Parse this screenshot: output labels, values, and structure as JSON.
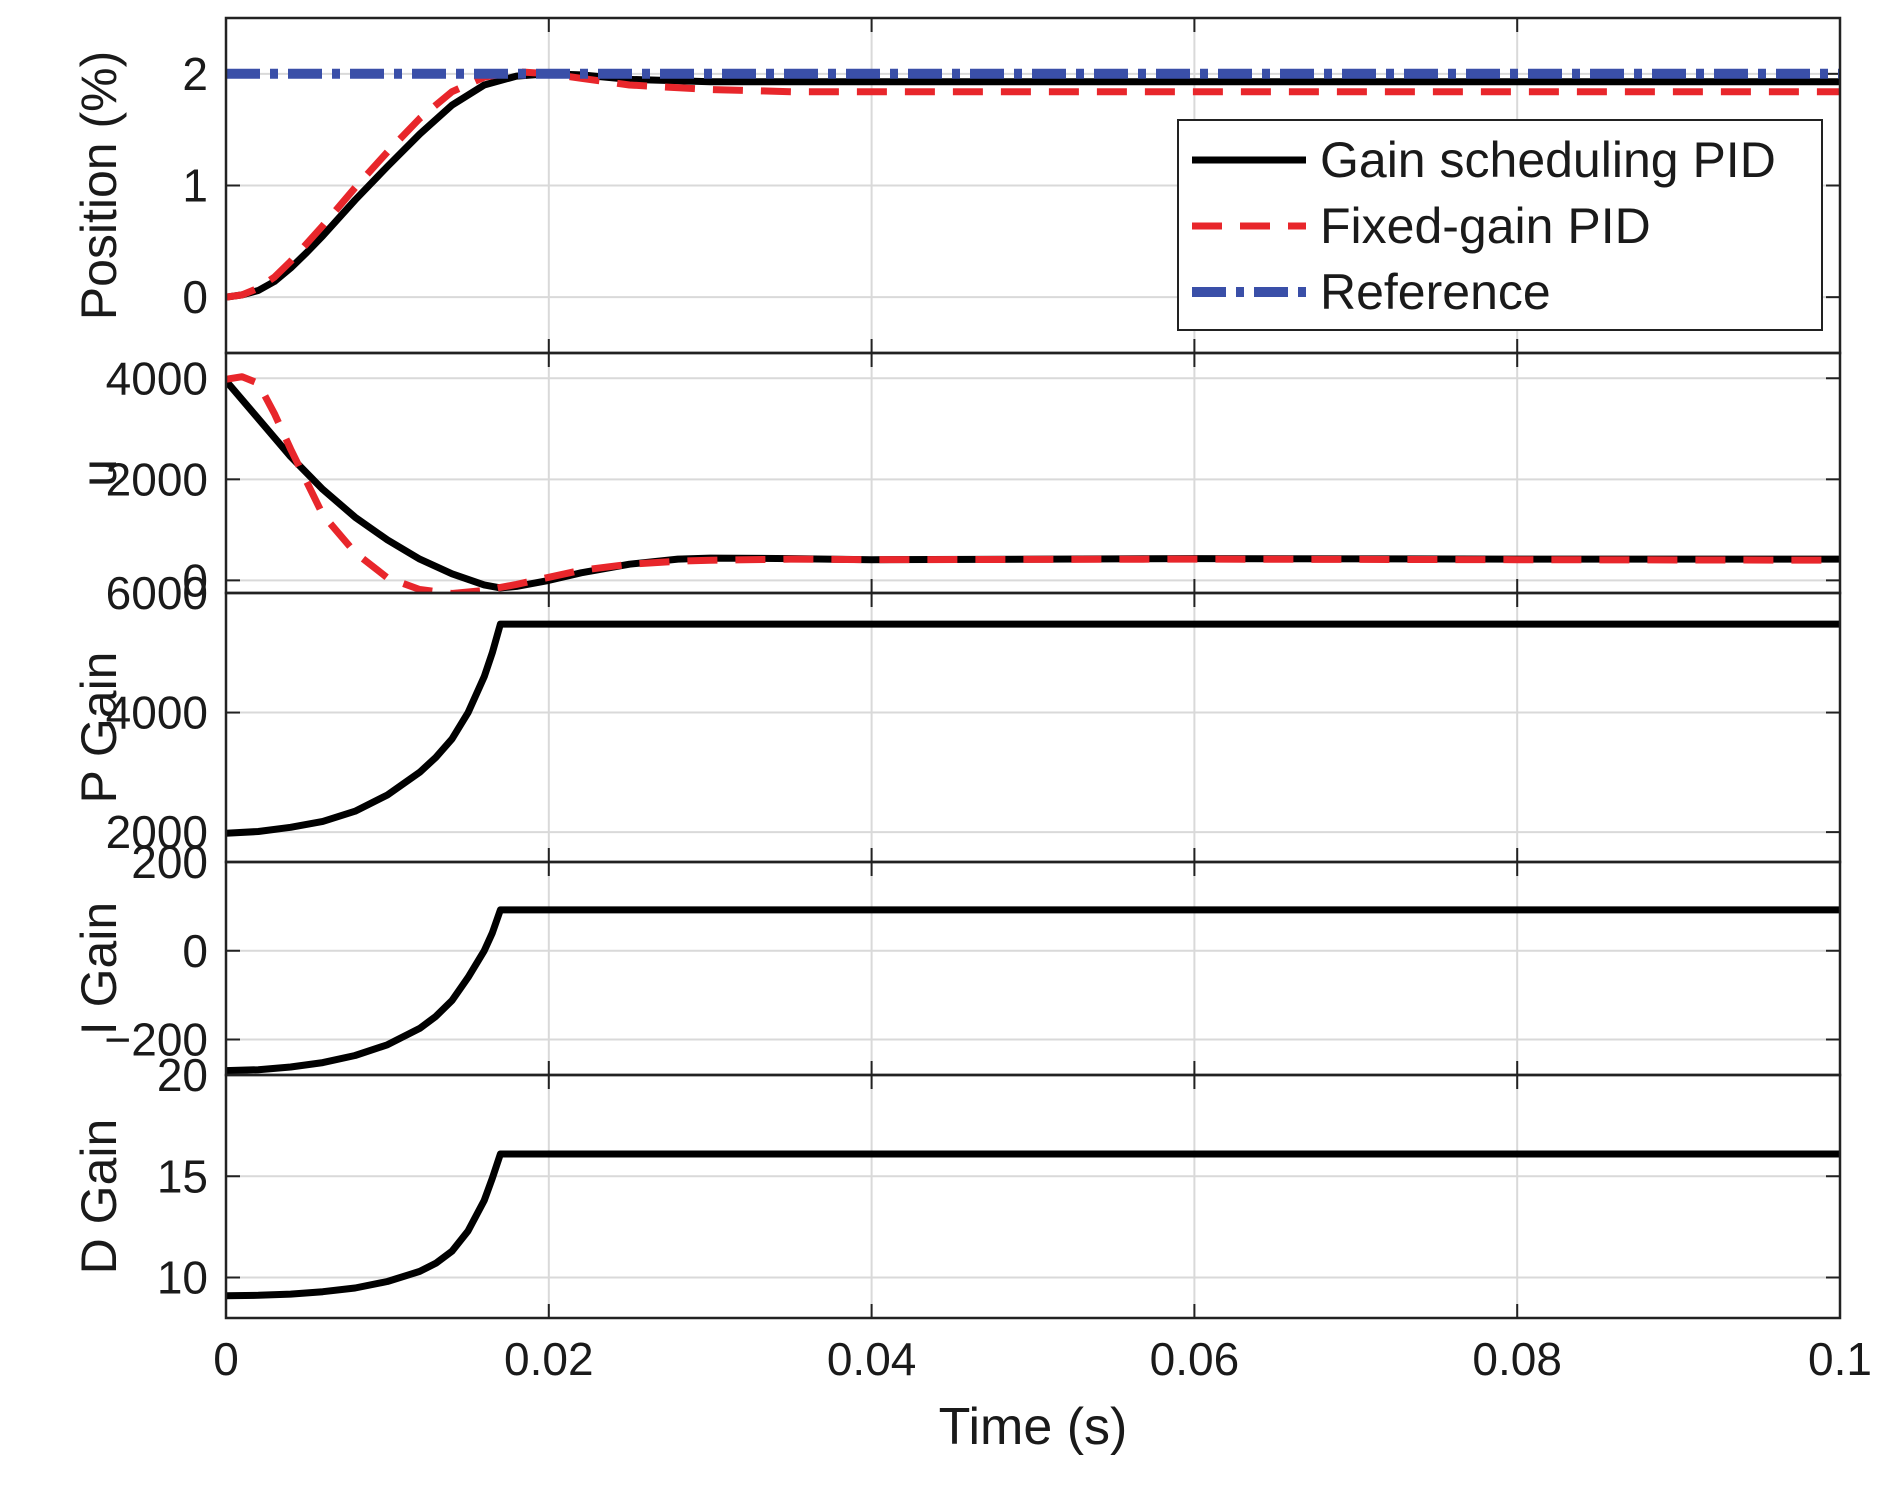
{
  "chart_data": {
    "type": "line",
    "x_label": "Time (s)",
    "x_range": [
      0,
      0.1
    ],
    "x_ticks": [
      "0",
      "0.02",
      "0.04",
      "0.06",
      "0.08",
      "0.1"
    ],
    "grid": true,
    "legend": {
      "placement": "top-right of first panel",
      "entries": [
        "Gain scheduling PID",
        "Fixed-gain PID",
        "Reference"
      ]
    },
    "colors": {
      "gain_scheduling": "#000000",
      "fixed_gain": "#e8262b",
      "reference": "#3a4fa8",
      "grid": "#d9d9d9"
    },
    "panels": [
      {
        "ylabel": "Position (%)",
        "ylim": [
          -0.5,
          2.5
        ],
        "yticks": [
          "0",
          "1",
          "2"
        ],
        "series": [
          {
            "name": "Gain scheduling PID",
            "x": [
              0,
              0.001,
              0.002,
              0.003,
              0.004,
              0.005,
              0.006,
              0.008,
              0.01,
              0.012,
              0.014,
              0.016,
              0.018,
              0.02,
              0.022,
              0.025,
              0.03,
              0.04,
              0.06,
              0.08,
              0.1
            ],
            "y": [
              0,
              0.02,
              0.06,
              0.14,
              0.26,
              0.4,
              0.55,
              0.87,
              1.17,
              1.46,
              1.72,
              1.9,
              1.98,
              2.0,
              1.99,
              1.95,
              1.93,
              1.93,
              1.93,
              1.93,
              1.93
            ]
          },
          {
            "name": "Fixed-gain PID",
            "x": [
              0,
              0.001,
              0.002,
              0.003,
              0.004,
              0.005,
              0.006,
              0.008,
              0.01,
              0.012,
              0.014,
              0.016,
              0.018,
              0.02,
              0.022,
              0.025,
              0.03,
              0.035,
              0.04,
              0.06,
              0.08,
              0.1
            ],
            "y": [
              0,
              0.02,
              0.08,
              0.18,
              0.32,
              0.48,
              0.64,
              0.98,
              1.3,
              1.6,
              1.84,
              1.97,
              2.02,
              2.0,
              1.96,
              1.9,
              1.86,
              1.84,
              1.84,
              1.84,
              1.84,
              1.84
            ]
          },
          {
            "name": "Reference",
            "x": [
              0,
              0.1
            ],
            "y": [
              2.0,
              2.0
            ]
          }
        ]
      },
      {
        "ylabel": "u",
        "ylim": [
          -250,
          4500
        ],
        "yticks": [
          "0",
          "2000",
          "4000"
        ],
        "series": [
          {
            "name": "Gain scheduling PID",
            "x": [
              0,
              0.002,
              0.004,
              0.006,
              0.008,
              0.01,
              0.012,
              0.014,
              0.016,
              0.017,
              0.018,
              0.02,
              0.022,
              0.025,
              0.028,
              0.03,
              0.035,
              0.04,
              0.06,
              0.08,
              0.1
            ],
            "y": [
              3950,
              3200,
              2450,
              1800,
              1250,
              800,
              420,
              130,
              -90,
              -150,
              -120,
              0,
              150,
              320,
              420,
              440,
              430,
              410,
              430,
              420,
              420
            ]
          },
          {
            "name": "Fixed-gain PID",
            "x": [
              0,
              0.001,
              0.002,
              0.003,
              0.004,
              0.005,
              0.006,
              0.008,
              0.01,
              0.012,
              0.014,
              0.016,
              0.018,
              0.02,
              0.022,
              0.025,
              0.028,
              0.03,
              0.035,
              0.04,
              0.06,
              0.08,
              0.1
            ],
            "y": [
              3980,
              4030,
              3900,
              3300,
              2600,
              1950,
              1300,
              550,
              50,
              -180,
              -260,
              -200,
              -80,
              60,
              200,
              320,
              380,
              400,
              420,
              410,
              420,
              410,
              400
            ]
          }
        ]
      },
      {
        "ylabel": "P Gain",
        "ylim": [
          1500,
          6000
        ],
        "yticks": [
          "2000",
          "4000",
          "6000"
        ],
        "series": [
          {
            "name": "Gain scheduling PID",
            "x": [
              0,
              0.002,
              0.004,
              0.006,
              0.008,
              0.01,
              0.012,
              0.013,
              0.014,
              0.015,
              0.016,
              0.0165,
              0.017,
              0.1
            ],
            "y": [
              1980,
              2010,
              2080,
              2180,
              2350,
              2620,
              3000,
              3250,
              3560,
              4000,
              4600,
              5000,
              5480,
              5480
            ]
          }
        ]
      },
      {
        "ylabel": "I Gain",
        "ylim": [
          -280,
          200
        ],
        "yticks": [
          "-200",
          "0",
          "200"
        ],
        "series": [
          {
            "name": "Gain scheduling PID",
            "x": [
              0,
              0.002,
              0.004,
              0.006,
              0.008,
              0.01,
              0.012,
              0.013,
              0.014,
              0.015,
              0.016,
              0.0165,
              0.017,
              0.1
            ],
            "y": [
              -270,
              -268,
              -262,
              -252,
              -236,
              -212,
              -175,
              -148,
              -112,
              -60,
              0,
              40,
              92,
              92
            ]
          }
        ]
      },
      {
        "ylabel": "D Gain",
        "ylim": [
          8,
          20
        ],
        "yticks": [
          "10",
          "15",
          "20"
        ],
        "series": [
          {
            "name": "Gain scheduling PID",
            "x": [
              0,
              0.002,
              0.004,
              0.006,
              0.008,
              0.01,
              0.012,
              0.013,
              0.014,
              0.015,
              0.016,
              0.0165,
              0.017,
              0.1
            ],
            "y": [
              9.1,
              9.12,
              9.18,
              9.3,
              9.48,
              9.8,
              10.3,
              10.7,
              11.3,
              12.3,
              13.8,
              14.9,
              16.1,
              16.1
            ]
          }
        ]
      }
    ]
  }
}
